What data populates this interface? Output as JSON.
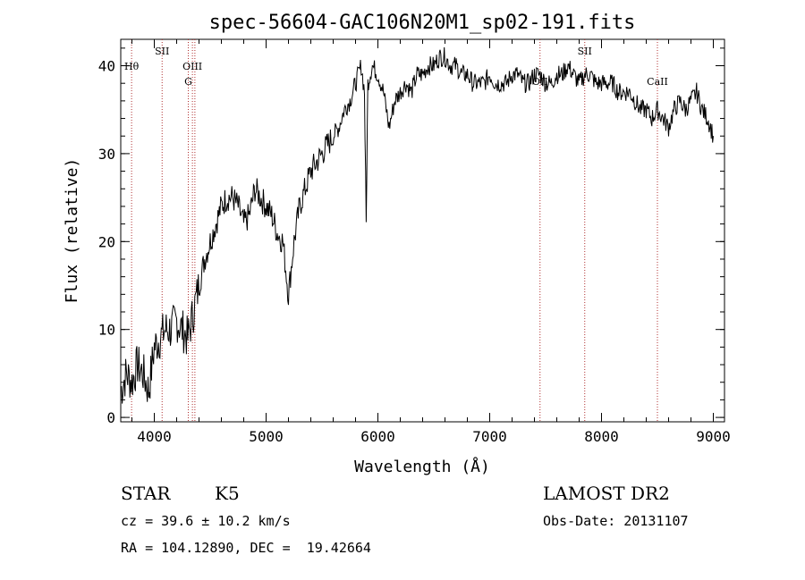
{
  "chart_data": {
    "type": "line",
    "title": "spec-56604-GAC106N20M1_sp02-191.fits",
    "xlabel": "Wavelength (Å)",
    "ylabel": "Flux (relative)",
    "xlim": [
      3700,
      9100
    ],
    "ylim": [
      -0.5,
      43
    ],
    "xticks": [
      4000,
      5000,
      6000,
      7000,
      8000,
      9000
    ],
    "yticks": [
      0,
      10,
      20,
      30,
      40
    ],
    "grid": false,
    "series": [
      {
        "x": [
          3700,
          3750,
          3800,
          3850,
          3900,
          3950,
          4000,
          4050,
          4100,
          4150,
          4200,
          4250,
          4300,
          4350,
          4400,
          4450,
          4500,
          4550,
          4600,
          4650,
          4700,
          4750,
          4800,
          4850,
          4900,
          4950,
          5000,
          5050,
          5100,
          5150,
          5200,
          5250,
          5300,
          5350,
          5400,
          5450,
          5500,
          5550,
          5600,
          5650,
          5700,
          5750,
          5800,
          5850,
          5880,
          5895,
          5910,
          5950,
          6000,
          6050,
          6100,
          6150,
          6200,
          6250,
          6300,
          6350,
          6400,
          6450,
          6500,
          6550,
          6600,
          6650,
          6700,
          6750,
          6800,
          6850,
          6900,
          6950,
          7000,
          7050,
          7100,
          7150,
          7200,
          7250,
          7300,
          7350,
          7400,
          7450,
          7500,
          7550,
          7600,
          7650,
          7700,
          7750,
          7800,
          7850,
          7900,
          7950,
          8000,
          8050,
          8100,
          8150,
          8200,
          8250,
          8300,
          8350,
          8400,
          8450,
          8500,
          8550,
          8600,
          8650,
          8700,
          8750,
          8800,
          8850,
          8900,
          8950,
          9000
        ],
        "y": [
          3,
          5,
          4,
          6,
          5,
          3,
          8,
          9,
          10,
          10,
          11,
          10,
          9,
          12,
          15,
          18,
          20,
          22,
          24,
          25,
          25,
          24,
          22,
          23,
          26,
          25,
          24,
          23,
          21,
          20,
          14,
          20,
          24,
          26,
          28,
          29,
          30,
          31,
          32,
          33,
          35,
          36,
          38,
          40,
          37,
          22,
          38,
          40,
          39,
          37,
          33,
          36,
          37,
          38,
          37,
          39,
          39,
          40,
          40,
          41,
          41,
          40,
          40,
          39,
          39,
          38,
          38,
          38,
          39,
          38,
          38,
          38,
          39,
          39,
          38,
          38,
          39,
          39,
          38,
          38,
          39,
          39,
          40,
          39,
          38,
          39,
          39,
          38,
          38,
          38,
          38,
          37,
          37,
          37,
          36,
          35,
          35,
          34,
          35,
          34,
          33,
          35,
          36,
          35,
          36,
          37,
          35,
          34,
          32
        ]
      }
    ],
    "lines": [
      {
        "x": 3797,
        "label": "Hθ",
        "row": 0
      },
      {
        "x": 4070,
        "label": "SII",
        "row": -1
      },
      {
        "x": 4304,
        "label": "G",
        "row": 1
      },
      {
        "x": 4341,
        "label": "OIII",
        "row": 0
      },
      {
        "x": 4363,
        "label": "",
        "row": 0
      },
      {
        "x": 7450,
        "label": "OII",
        "row": 1
      },
      {
        "x": 7850,
        "label": "SII",
        "row": -1
      },
      {
        "x": 8500,
        "label": "CaII",
        "row": 1
      }
    ]
  },
  "info": {
    "class": "STAR",
    "subclass": "K5",
    "survey": "LAMOST DR2",
    "cz": "cz = 39.6 ± 10.2 km/s",
    "obs_date": "Obs-Date: 20131107",
    "coords": "RA = 104.12890, DEC =  19.42664"
  }
}
